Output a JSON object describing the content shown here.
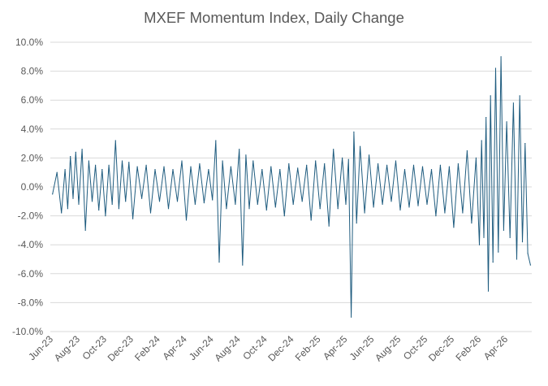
{
  "chart_data": {
    "type": "line",
    "title": "MXEF Momentum Index, Daily Change",
    "xlabel": "",
    "ylabel": "",
    "ylim": [
      -0.1,
      0.1
    ],
    "y_ticks": [
      0.1,
      0.08,
      0.06,
      0.04,
      0.02,
      0.0,
      -0.02,
      -0.04,
      -0.06,
      -0.08,
      -0.1
    ],
    "y_tick_labels": [
      "10.0%",
      "8.0%",
      "6.0%",
      "4.0%",
      "2.0%",
      "0.0%",
      "-2.0%",
      "-4.0%",
      "-6.0%",
      "-8.0%",
      "-10.0%"
    ],
    "y_format": "percent",
    "x_tick_labels": [
      "Jun-23",
      "Aug-23",
      "Oct-23",
      "Dec-23",
      "Feb-24",
      "Apr-24",
      "Jun-24",
      "Aug-24",
      "Oct-24",
      "Dec-24",
      "Feb-25",
      "Apr-25",
      "Jun-25",
      "Aug-25",
      "Oct-25",
      "Dec-25",
      "Feb-26",
      "Apr-26"
    ],
    "x_range": [
      "Jun-23",
      "Jun-26"
    ],
    "grid": true,
    "legend": "none",
    "series": [
      {
        "color": "#1F5C7F",
        "points": [
          [
            "Jun-23",
            -0.005
          ],
          [
            "Jun-23",
            0.01
          ],
          [
            "Jun-23",
            -0.018
          ],
          [
            "Jul-23",
            0.012
          ],
          [
            "Jul-23",
            -0.015
          ],
          [
            "Jul-23",
            0.021
          ],
          [
            "Jul-23",
            -0.008
          ],
          [
            "Jul-23",
            0.024
          ],
          [
            "Aug-23",
            -0.012
          ],
          [
            "Aug-23",
            0.026
          ],
          [
            "Aug-23",
            -0.03
          ],
          [
            "Aug-23",
            0.018
          ],
          [
            "Sep-23",
            -0.01
          ],
          [
            "Sep-23",
            0.015
          ],
          [
            "Sep-23",
            -0.016
          ],
          [
            "Sep-23",
            0.012
          ],
          [
            "Oct-23",
            -0.02
          ],
          [
            "Oct-23",
            0.015
          ],
          [
            "Oct-23",
            -0.012
          ],
          [
            "Oct-23",
            0.032
          ],
          [
            "Nov-23",
            -0.015
          ],
          [
            "Nov-23",
            0.018
          ],
          [
            "Nov-23",
            -0.01
          ],
          [
            "Nov-23",
            0.017
          ],
          [
            "Dec-23",
            -0.022
          ],
          [
            "Dec-23",
            0.014
          ],
          [
            "Dec-23",
            -0.008
          ],
          [
            "Jan-24",
            0.015
          ],
          [
            "Jan-24",
            -0.018
          ],
          [
            "Jan-24",
            0.012
          ],
          [
            "Feb-24",
            -0.01
          ],
          [
            "Feb-24",
            0.014
          ],
          [
            "Feb-24",
            -0.015
          ],
          [
            "Mar-24",
            0.012
          ],
          [
            "Mar-24",
            -0.01
          ],
          [
            "Mar-24",
            0.018
          ],
          [
            "Apr-24",
            -0.023
          ],
          [
            "Apr-24",
            0.014
          ],
          [
            "Apr-24",
            -0.012
          ],
          [
            "May-24",
            0.016
          ],
          [
            "May-24",
            -0.011
          ],
          [
            "May-24",
            0.012
          ],
          [
            "Jun-24",
            -0.009
          ],
          [
            "Jun-24",
            0.032
          ],
          [
            "Jun-24",
            -0.052
          ],
          [
            "Jun-24",
            0.018
          ],
          [
            "Jul-24",
            -0.015
          ],
          [
            "Jul-24",
            0.014
          ],
          [
            "Jul-24",
            -0.012
          ],
          [
            "Aug-24",
            0.026
          ],
          [
            "Aug-24",
            -0.054
          ],
          [
            "Aug-24",
            0.022
          ],
          [
            "Aug-24",
            -0.015
          ],
          [
            "Sep-24",
            0.018
          ],
          [
            "Sep-24",
            -0.012
          ],
          [
            "Sep-24",
            0.012
          ],
          [
            "Oct-24",
            -0.016
          ],
          [
            "Oct-24",
            0.014
          ],
          [
            "Oct-24",
            -0.014
          ],
          [
            "Nov-24",
            0.012
          ],
          [
            "Nov-24",
            -0.02
          ],
          [
            "Nov-24",
            0.016
          ],
          [
            "Dec-24",
            -0.012
          ],
          [
            "Dec-24",
            0.013
          ],
          [
            "Dec-24",
            -0.01
          ],
          [
            "Jan-25",
            0.015
          ],
          [
            "Jan-25",
            -0.023
          ],
          [
            "Jan-25",
            0.018
          ],
          [
            "Feb-25",
            -0.015
          ],
          [
            "Feb-25",
            0.016
          ],
          [
            "Feb-25",
            -0.027
          ],
          [
            "Mar-25",
            0.026
          ],
          [
            "Mar-25",
            -0.015
          ],
          [
            "Mar-25",
            0.02
          ],
          [
            "Apr-25",
            -0.012
          ],
          [
            "Apr-25",
            0.019
          ],
          [
            "Apr-25",
            -0.09
          ],
          [
            "Apr-25",
            0.038
          ],
          [
            "Apr-25",
            -0.025
          ],
          [
            "May-25",
            0.028
          ],
          [
            "May-25",
            -0.018
          ],
          [
            "May-25",
            0.022
          ],
          [
            "Jun-25",
            -0.014
          ],
          [
            "Jun-25",
            0.016
          ],
          [
            "Jun-25",
            -0.012
          ],
          [
            "Jul-25",
            0.015
          ],
          [
            "Jul-25",
            -0.01
          ],
          [
            "Jul-25",
            0.018
          ],
          [
            "Aug-25",
            -0.016
          ],
          [
            "Aug-25",
            0.012
          ],
          [
            "Aug-25",
            -0.014
          ],
          [
            "Sep-25",
            0.015
          ],
          [
            "Sep-25",
            -0.013
          ],
          [
            "Sep-25",
            0.014
          ],
          [
            "Oct-25",
            -0.012
          ],
          [
            "Oct-25",
            0.012
          ],
          [
            "Oct-25",
            -0.02
          ],
          [
            "Nov-25",
            0.015
          ],
          [
            "Nov-25",
            -0.018
          ],
          [
            "Nov-25",
            0.014
          ],
          [
            "Dec-25",
            -0.028
          ],
          [
            "Dec-25",
            0.016
          ],
          [
            "Dec-25",
            -0.018
          ],
          [
            "Jan-26",
            0.025
          ],
          [
            "Jan-26",
            -0.025
          ],
          [
            "Jan-26",
            0.02
          ],
          [
            "Feb-26",
            -0.04
          ],
          [
            "Feb-26",
            0.032
          ],
          [
            "Feb-26",
            -0.035
          ],
          [
            "Feb-26",
            0.048
          ],
          [
            "Feb-26",
            -0.072
          ],
          [
            "Feb-26",
            0.063
          ],
          [
            "Mar-26",
            -0.052
          ],
          [
            "Mar-26",
            0.082
          ],
          [
            "Mar-26",
            -0.045
          ],
          [
            "Mar-26",
            0.09
          ],
          [
            "Mar-26",
            -0.03
          ],
          [
            "Apr-26",
            0.045
          ],
          [
            "Apr-26",
            -0.035
          ],
          [
            "Apr-26",
            0.058
          ],
          [
            "Apr-26",
            -0.05
          ],
          [
            "May-26",
            0.063
          ],
          [
            "May-26",
            -0.038
          ],
          [
            "May-26",
            0.03
          ],
          [
            "May-26",
            -0.046
          ],
          [
            "May-26",
            -0.054
          ]
        ]
      }
    ]
  }
}
